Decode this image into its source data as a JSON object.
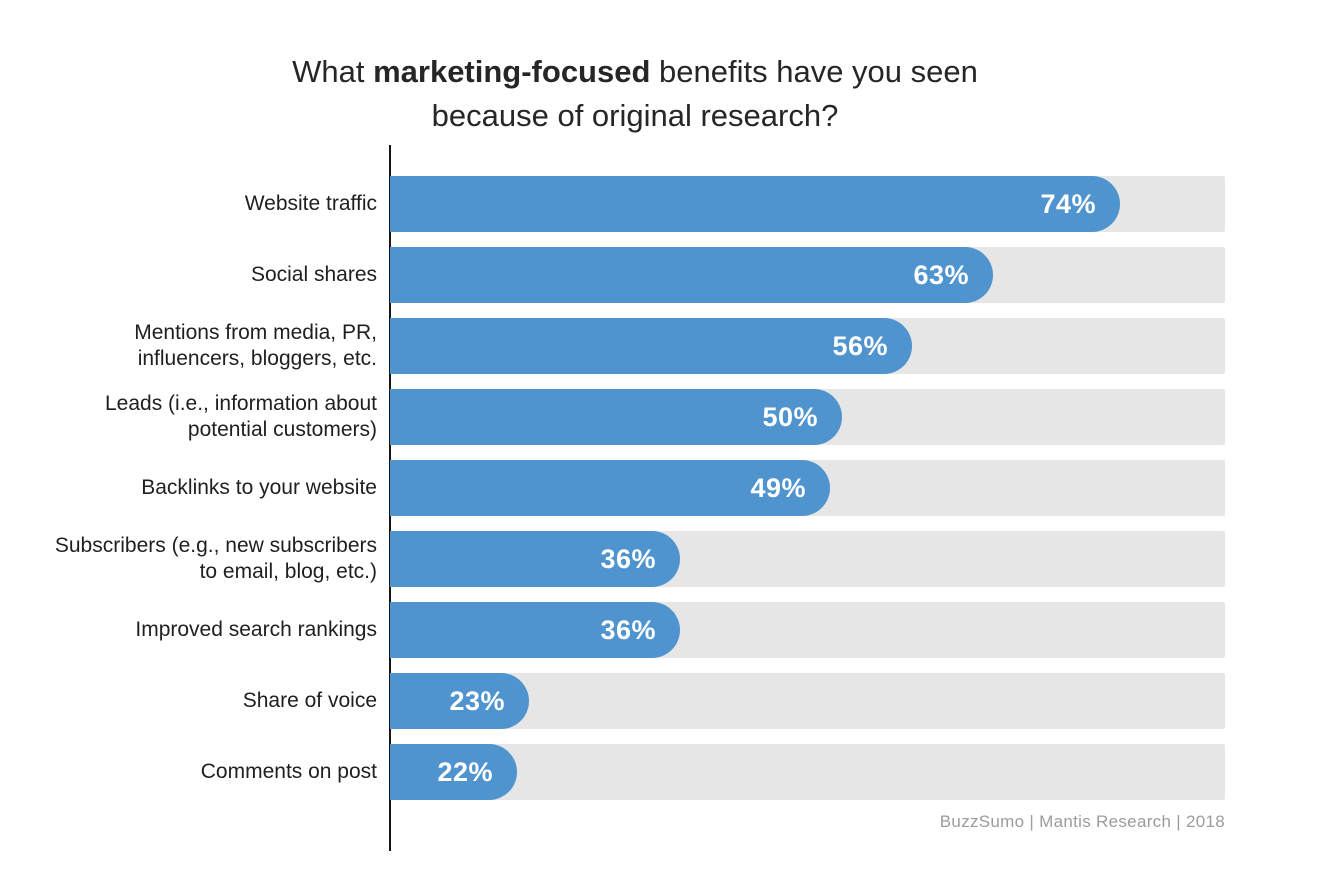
{
  "title": {
    "part1": "What ",
    "bold": "marketing-focused",
    "part2": " benefits have you seen",
    "line2": "because of original research?"
  },
  "source": "BuzzSumo | Mantis Research | 2018",
  "colors": {
    "bar": "#4f94ce",
    "track": "#e6e6e6",
    "title_text": "#262626",
    "label_text": "#1f1f1f",
    "value_text": "#ffffff",
    "source_text": "#9c9c9c",
    "axis": "#151515",
    "page_bg": "#ffffff"
  },
  "chart_data": {
    "type": "bar",
    "orientation": "horizontal",
    "title": "What marketing-focused benefits have you seen because of original research?",
    "categories": [
      "Website traffic",
      "Social shares",
      "Mentions from media, PR,\ninfluencers, bloggers, etc.",
      "Leads (i.e., information about\npotential customers)",
      "Backlinks to your website",
      "Subscribers (e.g., new subscribers\nto email, blog, etc.)",
      "Improved search rankings",
      "Share of voice",
      "Comments on post"
    ],
    "values": [
      74,
      63,
      56,
      50,
      49,
      36,
      36,
      23,
      22
    ],
    "value_suffix": "%",
    "xlabel": "",
    "ylabel": "",
    "xlim": [
      0,
      100
    ],
    "grid": false,
    "legend": false,
    "value_labels_position": "inside-end",
    "source": "BuzzSumo | Mantis Research | 2018"
  }
}
